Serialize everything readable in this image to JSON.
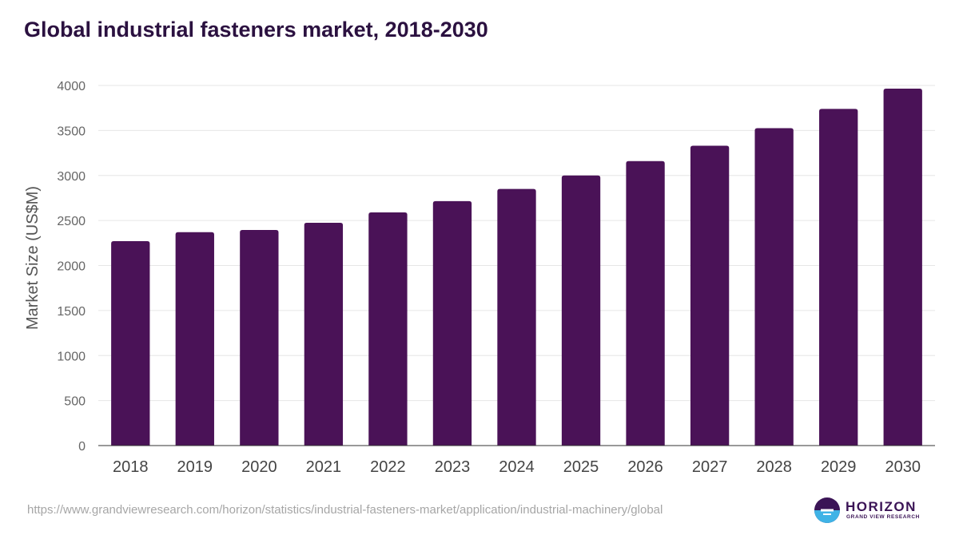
{
  "title": "Global industrial fasteners market, 2018-2030",
  "source_url": "https://www.grandviewresearch.com/horizon/statistics/industrial-fasteners-market/application/industrial-machinery/global",
  "logo": {
    "name": "HORIZON",
    "tagline": "GRAND VIEW RESEARCH"
  },
  "colors": {
    "bar": "#4a1257",
    "title": "#2b1140",
    "axis_text": "#666666",
    "grid": "#e6e6e6"
  },
  "chart_data": {
    "type": "bar",
    "title": "Global industrial fasteners market, 2018-2030",
    "xlabel": "",
    "ylabel": "Market Size (US$M)",
    "categories": [
      "2018",
      "2019",
      "2020",
      "2021",
      "2022",
      "2023",
      "2024",
      "2025",
      "2026",
      "2027",
      "2028",
      "2029",
      "2030"
    ],
    "values": [
      2270,
      2370,
      2395,
      2475,
      2590,
      2715,
      2850,
      3000,
      3160,
      3330,
      3525,
      3740,
      3965
    ],
    "ylim": [
      0,
      4000
    ],
    "yticks": [
      0,
      500,
      1000,
      1500,
      2000,
      2500,
      3000,
      3500,
      4000
    ],
    "grid": true,
    "legend": "none"
  }
}
